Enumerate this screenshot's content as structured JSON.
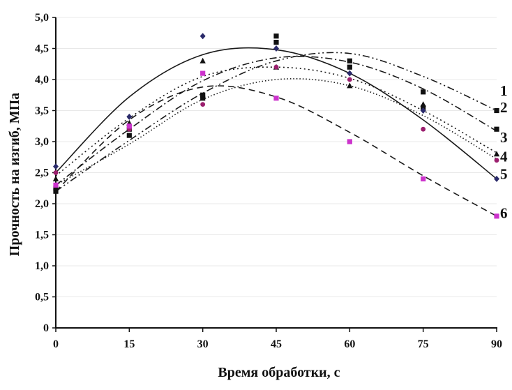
{
  "chart_data": {
    "type": "scatter",
    "title": "",
    "xlabel": "Время обработки, с",
    "ylabel": "Прочность на изгиб, МПа",
    "xlim": [
      0,
      90
    ],
    "ylim": [
      0,
      5
    ],
    "x_ticks": [
      "0",
      "15",
      "30",
      "45",
      "60",
      "75",
      "90"
    ],
    "y_ticks": [
      "0",
      "0,5",
      "1,0",
      "1,5",
      "2,0",
      "2,5",
      "3,0",
      "3,5",
      "4,0",
      "4,5",
      "5,0"
    ],
    "grid": "horizontal",
    "x": [
      0,
      15,
      30,
      45,
      60,
      75,
      90
    ],
    "series": [
      {
        "name": "1",
        "values": [
          2.2,
          3.1,
          3.7,
          4.7,
          4.3,
          3.8,
          3.5
        ],
        "color": "#111111",
        "line_style": "dash-dot-dot",
        "marker": "square"
      },
      {
        "name": "2",
        "values": [
          2.25,
          3.2,
          3.75,
          4.6,
          4.2,
          3.55,
          3.2
        ],
        "color": "#111111",
        "line_style": "dash-dot",
        "marker": "square"
      },
      {
        "name": "3",
        "values": [
          2.4,
          3.3,
          4.3,
          4.2,
          3.9,
          3.6,
          2.8
        ],
        "color": "#111111",
        "line_style": "dotted",
        "marker": "triangle"
      },
      {
        "name": "4",
        "values": [
          2.5,
          3.2,
          3.6,
          4.2,
          4.0,
          3.2,
          2.7
        ],
        "color": "#9b1f6e",
        "line_style": "dense-dotted",
        "marker": "circle"
      },
      {
        "name": "5",
        "values": [
          2.6,
          3.4,
          4.7,
          4.5,
          4.1,
          3.5,
          2.4
        ],
        "color": "#2a2a6a",
        "line_style": "solid",
        "marker": "diamond"
      },
      {
        "name": "6",
        "values": [
          2.3,
          3.25,
          4.1,
          3.7,
          3.0,
          2.4,
          1.8
        ],
        "color": "#cc33cc",
        "line_style": "dashed",
        "marker": "square"
      }
    ],
    "fit_curves": [
      {
        "series": "1",
        "values": [
          2.2,
          3.02,
          3.78,
          4.3,
          4.42,
          4.05,
          3.5
        ]
      },
      {
        "series": "2",
        "values": [
          2.3,
          3.2,
          3.98,
          4.35,
          4.28,
          3.85,
          3.17
        ]
      },
      {
        "series": "3",
        "values": [
          2.45,
          3.38,
          4.05,
          4.2,
          4.02,
          3.5,
          2.82
        ]
      },
      {
        "series": "4",
        "values": [
          2.3,
          2.96,
          3.68,
          4.0,
          3.9,
          3.42,
          2.72
        ]
      },
      {
        "series": "5",
        "values": [
          2.5,
          3.72,
          4.4,
          4.48,
          4.1,
          3.35,
          2.4
        ]
      },
      {
        "series": "6",
        "values": [
          2.2,
          3.35,
          3.88,
          3.72,
          3.15,
          2.45,
          1.8
        ]
      }
    ]
  }
}
